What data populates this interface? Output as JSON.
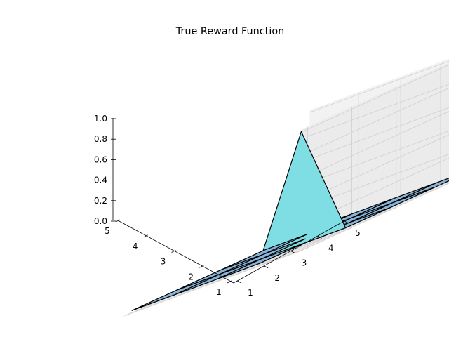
{
  "chart_data": {
    "type": "surface3d",
    "title": "True Reward Function",
    "xlabel": "",
    "ylabel": "",
    "zlabel": "",
    "x": [
      1,
      2,
      3,
      4,
      5
    ],
    "y": [
      1,
      2,
      3,
      4,
      5
    ],
    "z": [
      [
        0,
        0,
        0,
        0,
        0
      ],
      [
        0,
        0,
        0,
        0,
        0
      ],
      [
        0,
        0,
        0,
        0,
        0
      ],
      [
        0,
        0,
        0,
        0,
        0
      ],
      [
        0,
        0,
        0,
        0,
        1
      ]
    ],
    "x_ticks": [
      "1",
      "2",
      "3",
      "4",
      "5"
    ],
    "y_ticks": [
      "1",
      "2",
      "3",
      "4",
      "5"
    ],
    "z_ticks": [
      "0.0",
      "0.2",
      "0.4",
      "0.6",
      "0.8",
      "1.0"
    ],
    "xlim": [
      1,
      5
    ],
    "ylim": [
      1,
      5
    ],
    "zlim": [
      0,
      1
    ],
    "grid": true,
    "colors": {
      "surface_low": "#87b4d8",
      "surface_high": "#7fdde4",
      "edge": "#000000",
      "pane_back": "#f2f2f2",
      "pane_side": "#ebebeb",
      "pane_floor": "#e6e6e6",
      "gridline": "#cfcfcf"
    }
  }
}
